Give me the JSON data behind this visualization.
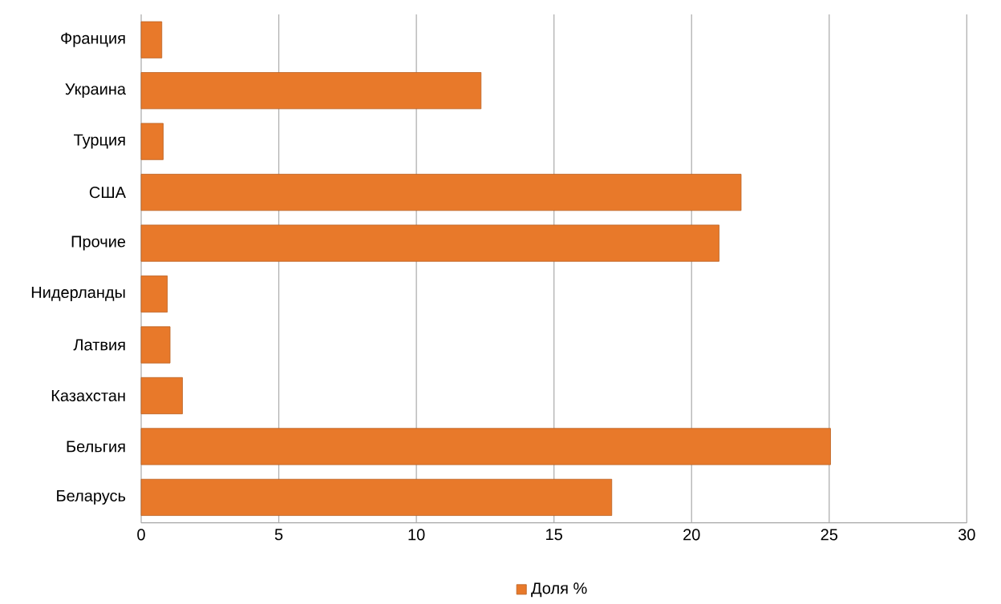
{
  "chart_data": {
    "type": "bar",
    "orientation": "horizontal",
    "categories": [
      "Франция",
      "Украина",
      "Турция",
      "США",
      "Прочие",
      "Нидерланды",
      "Латвия",
      "Казахстан",
      "Бельгия",
      "Беларусь"
    ],
    "series": [
      {
        "name": "Доля %",
        "color": "#e8792a",
        "values": [
          0.75,
          12.35,
          0.8,
          21.8,
          21.0,
          0.95,
          1.05,
          1.5,
          25.05,
          17.1
        ]
      }
    ],
    "xlim": [
      0,
      30
    ],
    "xticks": [
      0,
      5,
      10,
      15,
      20,
      25,
      30
    ],
    "grid": "x",
    "legend": "bottom"
  }
}
